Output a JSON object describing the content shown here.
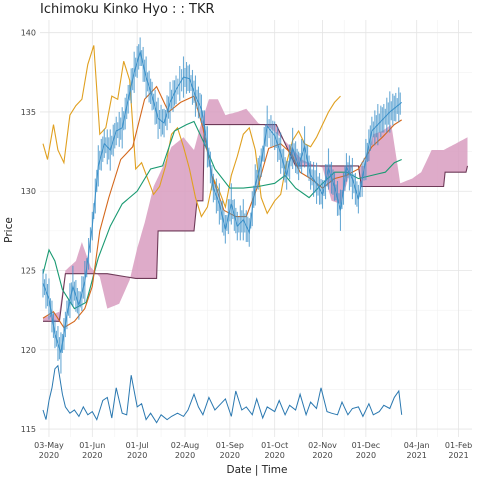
{
  "chart_data": {
    "type": "line",
    "title": "Ichimoku Kinko Hyo : : TKR",
    "xlabel": "Date | Time",
    "ylabel": "Price",
    "ylim": [
      114.5,
      140.8
    ],
    "xlim": [
      "2020-04-27",
      "2021-02-10"
    ],
    "y_ticks": [
      115,
      120,
      125,
      130,
      135,
      140
    ],
    "x_ticks": [
      {
        "date": "2020-05-03",
        "label": [
          "03-May",
          "2020"
        ]
      },
      {
        "date": "2020-06-01",
        "label": [
          "01-Jun",
          "2020"
        ]
      },
      {
        "date": "2020-07-01",
        "label": [
          "01-Jul",
          "2020"
        ]
      },
      {
        "date": "2020-08-02",
        "label": [
          "02-Aug",
          "2020"
        ]
      },
      {
        "date": "2020-09-01",
        "label": [
          "01-Sep",
          "2020"
        ]
      },
      {
        "date": "2020-10-01",
        "label": [
          "01-Oct",
          "2020"
        ]
      },
      {
        "date": "2020-11-02",
        "label": [
          "02-Nov",
          "2020"
        ]
      },
      {
        "date": "2020-12-01",
        "label": [
          "01-Dec",
          "2020"
        ]
      },
      {
        "date": "2021-01-04",
        "label": [
          "04-Jan",
          "2021"
        ]
      },
      {
        "date": "2021-02-01",
        "label": [
          "01-Feb",
          "2021"
        ]
      }
    ],
    "grid": true,
    "legend": "none",
    "colors": {
      "price": "#3a8fc8",
      "tenkan": "#d4681c",
      "kijun": "#1a9a72",
      "chikou": "#e0a020",
      "cloud_fill": "#d89cc0",
      "span_b": "#6e3a58",
      "volume": "#2a78b0"
    },
    "series": [
      {
        "key": "price",
        "x": [
          "2020-04-29",
          "2020-05-03",
          "2020-05-07",
          "2020-05-11",
          "2020-05-15",
          "2020-05-19",
          "2020-05-23",
          "2020-05-27",
          "2020-06-01",
          "2020-06-05",
          "2020-06-09",
          "2020-06-13",
          "2020-06-17",
          "2020-06-21",
          "2020-06-25",
          "2020-06-29",
          "2020-07-03",
          "2020-07-07",
          "2020-07-11",
          "2020-07-15",
          "2020-07-19",
          "2020-07-23",
          "2020-07-27",
          "2020-08-01",
          "2020-08-05",
          "2020-08-09",
          "2020-08-13",
          "2020-08-17",
          "2020-08-21",
          "2020-08-25",
          "2020-08-29",
          "2020-09-02",
          "2020-09-06",
          "2020-09-10",
          "2020-09-14",
          "2020-09-18",
          "2020-09-22",
          "2020-09-26",
          "2020-10-01",
          "2020-10-05",
          "2020-10-09",
          "2020-10-13",
          "2020-10-17",
          "2020-10-21",
          "2020-10-25",
          "2020-10-29",
          "2020-11-02",
          "2020-11-06",
          "2020-11-10",
          "2020-11-14",
          "2020-11-18",
          "2020-11-22",
          "2020-11-26",
          "2020-12-01",
          "2020-12-05",
          "2020-12-09",
          "2020-12-13",
          "2020-12-17",
          "2020-12-21",
          "2020-12-25"
        ],
        "y": [
          124.2,
          123.2,
          121.0,
          119.8,
          122.2,
          124.0,
          122.8,
          124.3,
          127.8,
          131.6,
          133.0,
          132.6,
          133.8,
          134.0,
          135.8,
          137.5,
          138.8,
          137.2,
          136.0,
          134.6,
          134.3,
          135.6,
          136.4,
          137.2,
          137.1,
          136.0,
          135.2,
          132.8,
          130.2,
          129.2,
          127.6,
          129.2,
          127.8,
          128.2,
          127.4,
          130.4,
          131.8,
          134.1,
          133.5,
          132.4,
          131.0,
          132.7,
          131.6,
          132.8,
          131.0,
          130.5,
          129.8,
          131.4,
          130.3,
          128.8,
          131.5,
          130.8,
          129.5,
          132.0,
          133.8,
          134.2,
          134.6,
          135.0,
          135.3,
          135.6
        ]
      },
      {
        "key": "tenkan",
        "x": [
          "2020-04-29",
          "2020-05-06",
          "2020-05-13",
          "2020-05-20",
          "2020-05-27",
          "2020-06-01",
          "2020-06-06",
          "2020-06-12",
          "2020-06-20",
          "2020-06-28",
          "2020-07-06",
          "2020-07-14",
          "2020-07-22",
          "2020-07-30",
          "2020-08-08",
          "2020-08-14",
          "2020-08-20",
          "2020-08-28",
          "2020-09-05",
          "2020-09-12",
          "2020-09-20",
          "2020-09-27",
          "2020-10-05",
          "2020-10-12",
          "2020-10-18",
          "2020-10-25",
          "2020-11-02",
          "2020-11-10",
          "2020-11-18",
          "2020-11-26",
          "2020-12-05",
          "2020-12-12",
          "2020-12-20",
          "2020-12-25"
        ],
        "y": [
          122.0,
          122.4,
          121.4,
          121.8,
          122.6,
          124.0,
          127.5,
          129.6,
          132.0,
          132.8,
          135.8,
          136.6,
          135.0,
          135.6,
          136.0,
          134.0,
          131.0,
          128.8,
          128.4,
          128.4,
          130.4,
          132.7,
          133.0,
          132.4,
          131.2,
          130.8,
          130.2,
          130.8,
          131.0,
          131.4,
          132.8,
          133.4,
          134.2,
          134.5
        ]
      },
      {
        "key": "kijun",
        "x": [
          "2020-04-29",
          "2020-05-03",
          "2020-05-07",
          "2020-05-12",
          "2020-05-20",
          "2020-05-28",
          "2020-06-05",
          "2020-06-13",
          "2020-06-21",
          "2020-07-01",
          "2020-07-10",
          "2020-07-18",
          "2020-07-26",
          "2020-08-03",
          "2020-08-08",
          "2020-08-15",
          "2020-08-22",
          "2020-09-01",
          "2020-09-10",
          "2020-09-20",
          "2020-10-01",
          "2020-10-08",
          "2020-10-15",
          "2020-10-24",
          "2020-11-01",
          "2020-11-10",
          "2020-11-18",
          "2020-11-26",
          "2020-12-05",
          "2020-12-14",
          "2020-12-20",
          "2020-12-25"
        ],
        "y": [
          124.8,
          126.3,
          125.6,
          123.8,
          122.6,
          123.0,
          125.8,
          127.8,
          129.2,
          130.0,
          131.4,
          131.6,
          133.8,
          134.2,
          134.4,
          133.0,
          131.4,
          130.2,
          130.2,
          130.3,
          130.5,
          131.0,
          130.2,
          129.6,
          130.4,
          131.2,
          131.2,
          130.8,
          131.0,
          131.2,
          131.8,
          132.0
        ]
      },
      {
        "key": "chikou",
        "x": [
          "2020-04-29",
          "2020-05-02",
          "2020-05-06",
          "2020-05-09",
          "2020-05-13",
          "2020-05-17",
          "2020-05-21",
          "2020-05-25",
          "2020-05-29",
          "2020-06-02",
          "2020-06-06",
          "2020-06-10",
          "2020-06-14",
          "2020-06-18",
          "2020-06-22",
          "2020-06-26",
          "2020-06-30",
          "2020-07-04",
          "2020-07-08",
          "2020-07-12",
          "2020-07-16",
          "2020-07-20",
          "2020-07-24",
          "2020-07-28",
          "2020-08-01",
          "2020-08-05",
          "2020-08-09",
          "2020-08-13",
          "2020-08-17",
          "2020-08-21",
          "2020-08-25",
          "2020-08-29",
          "2020-09-02",
          "2020-09-06",
          "2020-09-10",
          "2020-09-14",
          "2020-09-18",
          "2020-09-22",
          "2020-09-26",
          "2020-10-01",
          "2020-10-05",
          "2020-10-09",
          "2020-10-13",
          "2020-10-17",
          "2020-10-21",
          "2020-10-25",
          "2020-10-29",
          "2020-11-02",
          "2020-11-06",
          "2020-11-10",
          "2020-11-14"
        ],
        "y": [
          133.0,
          132.0,
          134.2,
          132.6,
          131.8,
          134.8,
          135.4,
          135.8,
          138.0,
          139.2,
          133.6,
          134.0,
          136.0,
          135.8,
          138.2,
          137.0,
          131.4,
          131.8,
          130.8,
          129.8,
          130.3,
          131.6,
          133.6,
          134.0,
          132.8,
          131.4,
          129.6,
          128.4,
          129.0,
          130.8,
          130.0,
          129.0,
          131.0,
          132.2,
          133.6,
          134.0,
          132.6,
          129.6,
          128.6,
          129.4,
          129.8,
          131.8,
          133.2,
          133.8,
          133.0,
          132.8,
          133.4,
          134.2,
          135.0,
          135.6,
          136.0
        ]
      },
      {
        "key": "span_a",
        "x": [
          "2020-04-29",
          "2020-05-10",
          "2020-05-14",
          "2020-05-21",
          "2020-05-25",
          "2020-05-31",
          "2020-06-06",
          "2020-06-11",
          "2020-06-19",
          "2020-06-26",
          "2020-07-01",
          "2020-07-06",
          "2020-07-12",
          "2020-07-18",
          "2020-07-24",
          "2020-08-01",
          "2020-08-08",
          "2020-08-12",
          "2020-08-18",
          "2020-08-24",
          "2020-08-29",
          "2020-09-06",
          "2020-09-12",
          "2020-09-20",
          "2020-09-28",
          "2020-10-05",
          "2020-10-12",
          "2020-10-19",
          "2020-10-26",
          "2020-11-02",
          "2020-11-08",
          "2020-11-14",
          "2020-11-22",
          "2020-11-30",
          "2020-12-06",
          "2020-12-12",
          "2020-12-18",
          "2020-12-24",
          "2021-01-01",
          "2021-01-07",
          "2021-01-14",
          "2021-01-22",
          "2021-01-30",
          "2021-02-07"
        ],
        "y": [
          122.0,
          122.4,
          125.0,
          125.6,
          126.8,
          125.2,
          124.6,
          122.6,
          122.9,
          124.4,
          126.4,
          128.0,
          130.3,
          131.5,
          132.8,
          133.4,
          132.6,
          134.0,
          135.8,
          135.8,
          134.8,
          135.0,
          135.2,
          134.3,
          134.0,
          133.4,
          132.8,
          132.0,
          131.7,
          131.5,
          129.4,
          129.2,
          131.6,
          131.6,
          133.6,
          133.8,
          134.2,
          130.5,
          130.8,
          131.2,
          132.6,
          132.6,
          133.0,
          133.4
        ]
      },
      {
        "key": "span_b",
        "x": [
          "2020-04-29",
          "2020-05-10",
          "2020-05-14",
          "2020-06-11",
          "2020-06-30",
          "2020-07-01",
          "2020-07-14",
          "2020-07-15",
          "2020-08-08",
          "2020-08-10",
          "2020-08-14",
          "2020-08-15",
          "2020-09-06",
          "2020-09-12",
          "2020-10-02",
          "2020-10-15",
          "2020-11-06",
          "2020-11-26",
          "2020-11-28",
          "2020-12-24",
          "2021-01-22",
          "2021-01-23",
          "2021-02-06",
          "2021-02-07"
        ],
        "y": [
          121.8,
          121.8,
          124.8,
          124.8,
          124.5,
          124.5,
          124.5,
          127.5,
          127.5,
          129.4,
          129.4,
          134.2,
          134.2,
          134.2,
          134.2,
          131.6,
          131.6,
          131.6,
          130.3,
          130.3,
          130.3,
          131.2,
          131.2,
          131.6
        ]
      },
      {
        "key": "volume",
        "x": [
          "2020-04-29",
          "2020-05-01",
          "2020-05-03",
          "2020-05-05",
          "2020-05-07",
          "2020-05-09",
          "2020-05-12",
          "2020-05-14",
          "2020-05-17",
          "2020-05-20",
          "2020-05-23",
          "2020-05-26",
          "2020-05-29",
          "2020-06-01",
          "2020-06-04",
          "2020-06-08",
          "2020-06-11",
          "2020-06-14",
          "2020-06-17",
          "2020-06-21",
          "2020-06-24",
          "2020-06-27",
          "2020-07-01",
          "2020-07-04",
          "2020-07-07",
          "2020-07-10",
          "2020-07-14",
          "2020-07-17",
          "2020-07-21",
          "2020-07-24",
          "2020-07-28",
          "2020-08-01",
          "2020-08-04",
          "2020-08-08",
          "2020-08-11",
          "2020-08-14",
          "2020-08-18",
          "2020-08-22",
          "2020-08-26",
          "2020-08-29",
          "2020-09-02",
          "2020-09-05",
          "2020-09-09",
          "2020-09-12",
          "2020-09-16",
          "2020-09-19",
          "2020-09-23",
          "2020-09-26",
          "2020-10-01",
          "2020-10-04",
          "2020-10-08",
          "2020-10-11",
          "2020-10-15",
          "2020-10-18",
          "2020-10-22",
          "2020-10-25",
          "2020-10-29",
          "2020-11-01",
          "2020-11-05",
          "2020-11-08",
          "2020-11-12",
          "2020-11-15",
          "2020-11-19",
          "2020-11-22",
          "2020-11-26",
          "2020-11-29",
          "2020-12-03",
          "2020-12-06",
          "2020-12-10",
          "2020-12-13",
          "2020-12-17",
          "2020-12-20",
          "2020-12-23",
          "2020-12-25"
        ],
        "y": [
          116.2,
          115.6,
          116.8,
          117.6,
          118.8,
          119.0,
          117.2,
          116.4,
          116.0,
          116.2,
          115.8,
          116.4,
          115.9,
          116.1,
          115.6,
          116.8,
          117.0,
          115.7,
          117.6,
          116.0,
          115.9,
          118.4,
          116.4,
          116.6,
          115.6,
          116.0,
          115.4,
          115.9,
          115.6,
          115.8,
          116.0,
          115.8,
          116.2,
          117.2,
          116.4,
          115.9,
          117.0,
          116.2,
          116.6,
          116.9,
          115.8,
          117.4,
          116.2,
          116.4,
          115.9,
          116.9,
          115.7,
          116.4,
          116.1,
          116.8,
          115.9,
          116.5,
          116.2,
          117.2,
          115.9,
          116.7,
          116.3,
          117.6,
          116.1,
          116.0,
          115.9,
          116.7,
          115.9,
          116.3,
          116.4,
          115.8,
          116.6,
          115.9,
          116.1,
          116.5,
          116.3,
          117.0,
          117.4,
          115.9
        ]
      }
    ]
  }
}
